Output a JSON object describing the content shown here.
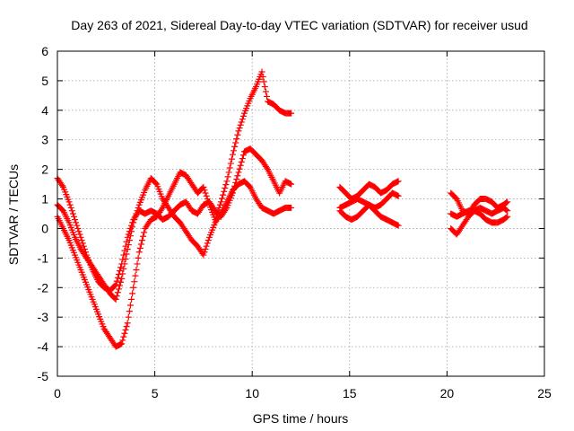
{
  "chart_data": {
    "type": "scatter",
    "title": "Day 263 of 2021, Sidereal Day-to-day VTEC variation (SDTVAR) for receiver usud",
    "xlabel": "GPS time / hours",
    "ylabel": "SDTVAR / TECUs",
    "xlim": [
      0,
      25
    ],
    "ylim": [
      -5,
      6
    ],
    "xticks": [
      "0",
      "5",
      "10",
      "15",
      "20",
      "25"
    ],
    "yticks": [
      "-5",
      "-4",
      "-3",
      "-2",
      "-1",
      "0",
      "1",
      "2",
      "3",
      "4",
      "5",
      "6"
    ],
    "grid": true,
    "marker": "+",
    "color": "#ff0000",
    "series": [
      {
        "x": [
          0.0,
          0.3,
          0.6,
          0.9,
          1.2,
          1.5,
          1.8,
          2.1,
          2.4,
          2.7,
          3.0,
          3.3,
          3.6,
          3.9,
          4.2,
          4.5,
          4.8,
          5.1,
          5.4,
          5.7,
          6.0,
          6.3,
          6.6,
          6.9,
          7.2,
          7.5,
          7.8,
          8.1,
          8.4,
          8.7,
          9.0,
          9.3,
          9.6,
          9.9,
          10.2,
          10.5,
          10.8,
          11.1,
          11.4,
          11.7,
          12.0,
          14.5,
          14.8,
          15.1,
          15.4,
          15.7,
          16.0,
          16.3,
          16.6,
          16.9,
          17.2,
          17.5,
          20.2,
          20.5,
          20.8,
          21.1,
          21.4,
          21.7,
          22.0,
          22.3,
          22.6,
          22.9,
          23.1
        ],
        "values": [
          1.7,
          1.4,
          0.9,
          0.3,
          -0.3,
          -0.9,
          -1.4,
          -1.8,
          -2.0,
          -2.1,
          -1.9,
          -1.2,
          -0.3,
          0.3,
          0.6,
          0.5,
          0.6,
          0.5,
          0.3,
          0.4,
          0.6,
          0.8,
          0.9,
          0.6,
          0.5,
          0.8,
          0.9,
          0.6,
          0.4,
          0.7,
          1.2,
          1.9,
          2.6,
          2.7,
          2.5,
          2.3,
          2.0,
          1.6,
          1.2,
          1.6,
          1.5,
          1.4,
          1.2,
          1.0,
          1.1,
          1.3,
          1.5,
          1.4,
          1.2,
          1.3,
          1.5,
          1.6,
          1.2,
          1.0,
          0.6,
          0.5,
          0.8,
          1.0,
          1.0,
          0.9,
          0.7,
          0.8,
          0.9
        ]
      },
      {
        "x": [
          0.0,
          0.3,
          0.6,
          0.9,
          1.2,
          1.5,
          1.8,
          2.1,
          2.4,
          2.7,
          3.0,
          3.3,
          3.6,
          3.9,
          4.2,
          4.5,
          4.8,
          5.1,
          5.4,
          5.7,
          6.0,
          6.3,
          6.6,
          6.9,
          7.2,
          7.5,
          7.8,
          8.1,
          8.4,
          8.7,
          9.0,
          9.3,
          9.6,
          9.9,
          10.2,
          10.5,
          10.8,
          11.1,
          11.4,
          11.7,
          12.0,
          14.5,
          14.8,
          15.1,
          15.4,
          15.7,
          16.0,
          16.3,
          16.6,
          16.9,
          17.2,
          17.5,
          20.2,
          20.5,
          20.8,
          21.1,
          21.4,
          21.7,
          22.0,
          22.3,
          22.6,
          22.9,
          23.1
        ],
        "values": [
          0.8,
          0.6,
          0.2,
          -0.3,
          -0.7,
          -1.0,
          -1.3,
          -1.6,
          -1.9,
          -2.2,
          -2.4,
          -1.7,
          -0.7,
          0.2,
          0.8,
          1.3,
          1.7,
          1.5,
          1.0,
          0.7,
          0.4,
          0.2,
          -0.1,
          -0.4,
          -0.6,
          -0.9,
          -0.3,
          0.2,
          0.5,
          0.9,
          1.3,
          1.5,
          1.6,
          1.4,
          1.0,
          0.7,
          0.6,
          0.5,
          0.6,
          0.7,
          0.7,
          0.7,
          0.8,
          0.9,
          1.0,
          0.9,
          0.8,
          0.7,
          0.8,
          1.0,
          1.2,
          1.1,
          0.5,
          0.4,
          0.5,
          0.6,
          0.6,
          0.7,
          0.6,
          0.5,
          0.6,
          0.7,
          0.6
        ]
      },
      {
        "x": [
          0.0,
          0.3,
          0.6,
          0.9,
          1.2,
          1.5,
          1.8,
          2.1,
          2.4,
          2.7,
          3.0,
          3.3,
          3.6,
          3.9,
          4.2,
          4.5,
          4.8,
          5.1,
          5.4,
          5.7,
          6.0,
          6.3,
          6.6,
          6.9,
          7.2,
          7.5,
          7.8,
          8.1,
          8.4,
          8.7,
          9.0,
          9.3,
          9.6,
          9.9,
          10.2,
          10.5,
          10.8,
          11.1,
          11.4,
          11.7,
          12.0,
          14.5,
          14.8,
          15.1,
          15.4,
          15.7,
          16.0,
          16.3,
          16.6,
          16.9,
          17.2,
          17.5,
          20.2,
          20.5,
          20.8,
          21.1,
          21.4,
          21.7,
          22.0,
          22.3,
          22.6,
          22.9,
          23.1
        ],
        "values": [
          0.4,
          0.0,
          -0.4,
          -0.9,
          -1.4,
          -1.9,
          -2.4,
          -2.9,
          -3.4,
          -3.7,
          -4.0,
          -3.9,
          -3.2,
          -2.0,
          -0.8,
          0.0,
          0.3,
          0.4,
          0.7,
          1.1,
          1.5,
          1.9,
          1.8,
          1.5,
          1.2,
          1.4,
          0.8,
          0.3,
          0.9,
          1.6,
          2.5,
          3.3,
          3.9,
          4.4,
          4.8,
          5.3,
          4.3,
          4.2,
          4.0,
          3.9,
          3.9,
          0.6,
          0.4,
          0.3,
          0.4,
          0.6,
          0.8,
          0.6,
          0.4,
          0.3,
          0.2,
          0.1,
          0.0,
          -0.2,
          0.1,
          0.4,
          0.6,
          0.5,
          0.3,
          0.2,
          0.2,
          0.3,
          0.4
        ]
      }
    ]
  }
}
